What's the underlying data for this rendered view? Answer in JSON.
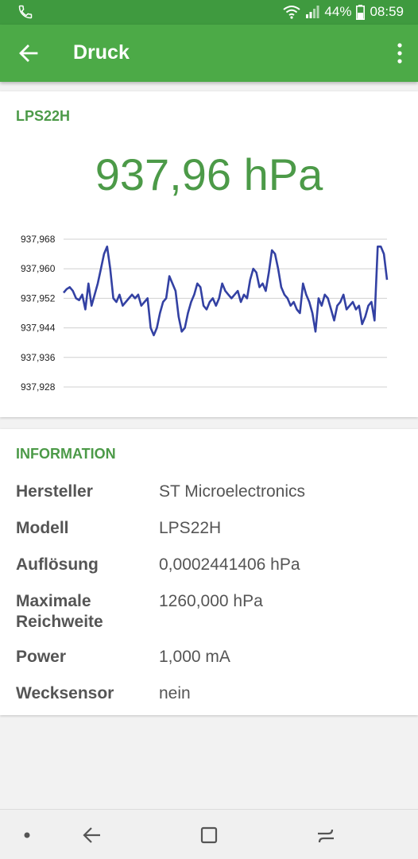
{
  "status": {
    "battery": "44%",
    "time": "08:59"
  },
  "appbar": {
    "title": "Druck"
  },
  "sensor": {
    "name": "LPS22H",
    "reading": "937,96 hPa"
  },
  "chart_data": {
    "type": "line",
    "yticks": [
      "937,968",
      "937,960",
      "937,952",
      "937,944",
      "937,936",
      "937,928"
    ],
    "ylim": [
      937.928,
      937.968
    ],
    "grid": true,
    "series": [
      {
        "color": "#3341a3",
        "values": [
          937.9535,
          937.9545,
          937.955,
          937.954,
          937.952,
          937.9515,
          937.953,
          937.949,
          937.956,
          937.95,
          937.953,
          937.956,
          937.96,
          937.964,
          937.966,
          937.96,
          937.952,
          937.951,
          937.953,
          937.95,
          937.951,
          937.952,
          937.953,
          937.952,
          937.953,
          937.95,
          937.951,
          937.952,
          937.944,
          937.942,
          937.944,
          937.948,
          937.951,
          937.952,
          937.958,
          937.956,
          937.954,
          937.947,
          937.943,
          937.944,
          937.948,
          937.951,
          937.953,
          937.956,
          937.955,
          937.95,
          937.949,
          937.951,
          937.952,
          937.95,
          937.952,
          937.956,
          937.954,
          937.953,
          937.952,
          937.953,
          937.954,
          937.951,
          937.953,
          937.952,
          937.957,
          937.96,
          937.959,
          937.955,
          937.956,
          937.954,
          937.959,
          937.965,
          937.964,
          937.96,
          937.955,
          937.953,
          937.952,
          937.95,
          937.951,
          937.949,
          937.948,
          937.956,
          937.953,
          937.951,
          937.948,
          937.943,
          937.952,
          937.95,
          937.953,
          937.952,
          937.949,
          937.946,
          937.95,
          937.951,
          937.953,
          937.949,
          937.95,
          937.951,
          937.949,
          937.95,
          937.945,
          937.947,
          937.95,
          937.951,
          937.946,
          937.966,
          937.966,
          937.964,
          937.957
        ]
      }
    ]
  },
  "info": {
    "title": "INFORMATION",
    "rows": [
      {
        "key": "Hersteller",
        "value": "ST Microelectronics"
      },
      {
        "key": "Modell",
        "value": "LPS22H"
      },
      {
        "key": "Auflösung",
        "value": "0,0002441406 hPa"
      },
      {
        "key": "Maximale Reichweite",
        "value": "1260,000 hPa"
      },
      {
        "key": "Power",
        "value": "1,000 mA"
      },
      {
        "key": "Wecksensor",
        "value": "nein"
      }
    ]
  }
}
